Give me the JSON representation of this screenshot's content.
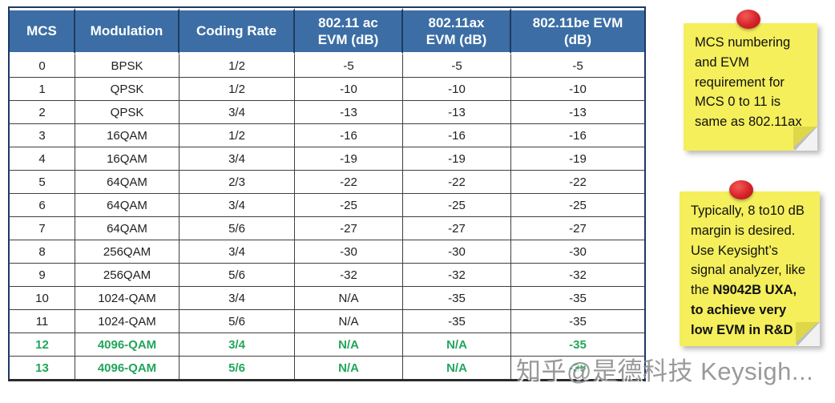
{
  "chart_data": {
    "type": "table",
    "columns": [
      "MCS",
      "Modulation",
      "Coding Rate",
      "802.11 ac\nEVM (dB)",
      "802.11ax\nEVM (dB)",
      "802.11be EVM\n(dB)"
    ],
    "rows": [
      {
        "cells": [
          "0",
          "BPSK",
          "1/2",
          "-5",
          "-5",
          "-5"
        ],
        "green": false
      },
      {
        "cells": [
          "1",
          "QPSK",
          "1/2",
          "-10",
          "-10",
          "-10"
        ],
        "green": false
      },
      {
        "cells": [
          "2",
          "QPSK",
          "3/4",
          "-13",
          "-13",
          "-13"
        ],
        "green": false
      },
      {
        "cells": [
          "3",
          "16QAM",
          "1/2",
          "-16",
          "-16",
          "-16"
        ],
        "green": false
      },
      {
        "cells": [
          "4",
          "16QAM",
          "3/4",
          "-19",
          "-19",
          "-19"
        ],
        "green": false
      },
      {
        "cells": [
          "5",
          "64QAM",
          "2/3",
          "-22",
          "-22",
          "-22"
        ],
        "green": false
      },
      {
        "cells": [
          "6",
          "64QAM",
          "3/4",
          "-25",
          "-25",
          "-25"
        ],
        "green": false
      },
      {
        "cells": [
          "7",
          "64QAM",
          "5/6",
          "-27",
          "-27",
          "-27"
        ],
        "green": false
      },
      {
        "cells": [
          "8",
          "256QAM",
          "3/4",
          "-30",
          "-30",
          "-30"
        ],
        "green": false
      },
      {
        "cells": [
          "9",
          "256QAM",
          "5/6",
          "-32",
          "-32",
          "-32"
        ],
        "green": false
      },
      {
        "cells": [
          "10",
          "1024-QAM",
          "3/4",
          "N/A",
          "-35",
          "-35"
        ],
        "green": false
      },
      {
        "cells": [
          "11",
          "1024-QAM",
          "5/6",
          "N/A",
          "-35",
          "-35"
        ],
        "green": false
      },
      {
        "cells": [
          "12",
          "4096-QAM",
          "3/4",
          "N/A",
          "N/A",
          "-35"
        ],
        "green": true
      },
      {
        "cells": [
          "13",
          "4096-QAM",
          "5/6",
          "N/A",
          "N/A",
          "-38"
        ],
        "green": true
      }
    ],
    "legend_position": "none",
    "grid": true
  },
  "sticky_notes": {
    "note1": {
      "text": "MCS numbering\nand EVM\nrequirement for\nMCS 0 to 11 is\nsame as 802.11ax"
    },
    "note2": {
      "text_regular": "Typically, 8 to10 dB\nmargin is desired.\nUse Keysight’s\nsignal analyzer, like\nthe ",
      "text_bold": "N9042B UXA,\nto achieve very\nlow EVM in R&D"
    }
  },
  "watermark": "知乎@是德科技 Keysigh...",
  "colors": {
    "header_bg": "#3C6EA5",
    "header_text": "#FFFFFF",
    "header_divider": "#1E3A5F",
    "frame_navy": "#1F3864",
    "highlight_green": "#21A65A",
    "note_yellow": "#F4EF5B",
    "pin_red": "#D6222A",
    "watermark_gray": "#9C9C9C"
  }
}
